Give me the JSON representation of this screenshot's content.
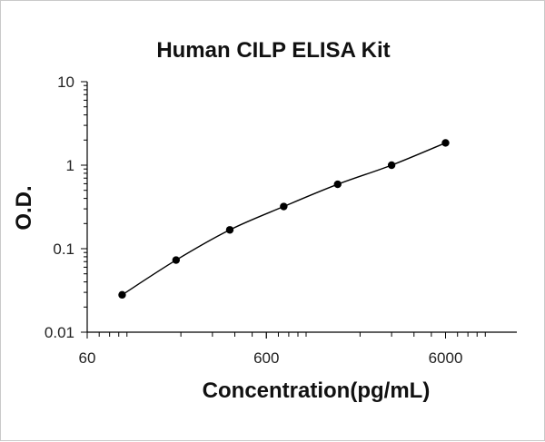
{
  "chart_data": {
    "type": "scatter",
    "title": "Human CILP ELISA Kit",
    "xlabel": "Concentration(pg/mL)",
    "ylabel": "O.D.",
    "x_scale": "log",
    "y_scale": "log",
    "xlim": [
      60,
      15000
    ],
    "ylim": [
      0.01,
      10
    ],
    "x_ticks": [
      {
        "value": 60,
        "label": "60"
      },
      {
        "value": 600,
        "label": "600"
      },
      {
        "value": 6000,
        "label": "6000"
      }
    ],
    "y_ticks": [
      {
        "value": 0.01,
        "label": "0.01"
      },
      {
        "value": 0.1,
        "label": "0.1"
      },
      {
        "value": 1,
        "label": "1"
      },
      {
        "value": 10,
        "label": "10"
      }
    ],
    "grid": false,
    "legend": "none",
    "series": [
      {
        "points": [
          {
            "x": 94,
            "y": 0.028
          },
          {
            "x": 188,
            "y": 0.073
          },
          {
            "x": 375,
            "y": 0.168
          },
          {
            "x": 750,
            "y": 0.32
          },
          {
            "x": 1500,
            "y": 0.59
          },
          {
            "x": 3000,
            "y": 1.0
          },
          {
            "x": 6000,
            "y": 1.85
          }
        ],
        "trend_curve": true
      }
    ],
    "colors": {
      "marker": "#000000",
      "line": "#000000",
      "axis": "#000000"
    }
  }
}
